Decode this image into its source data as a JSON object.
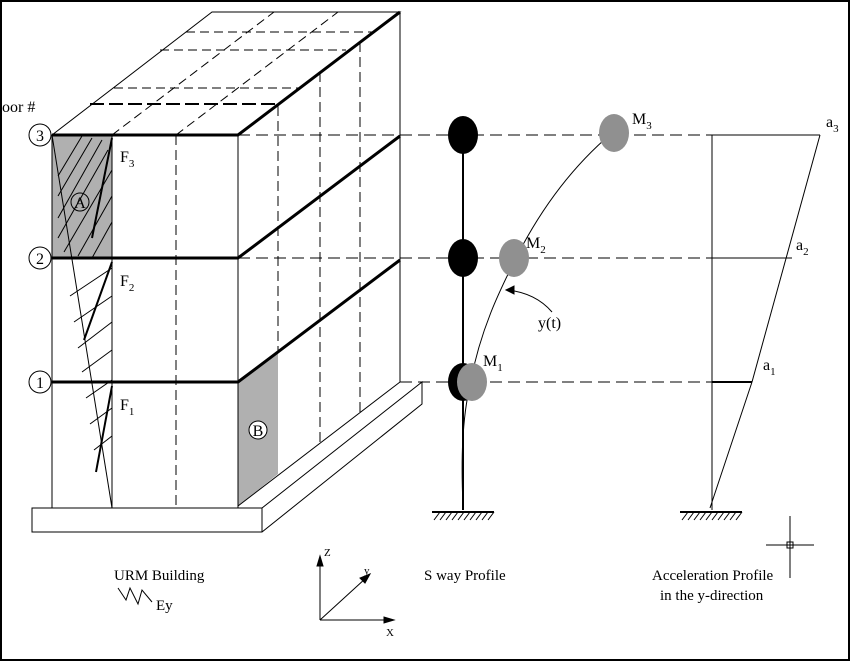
{
  "floor_header": "oor #",
  "floors": [
    {
      "number": "3",
      "force": "F",
      "force_sub": "3",
      "mass": "M",
      "mass_sub": "3",
      "accel": "a",
      "accel_sub": "3"
    },
    {
      "number": "2",
      "force": "F",
      "force_sub": "2",
      "mass": "M",
      "mass_sub": "2",
      "accel": "a",
      "accel_sub": "2"
    },
    {
      "number": "1",
      "force": "F",
      "force_sub": "1",
      "mass": "M",
      "mass_sub": "1",
      "accel": "a",
      "accel_sub": "1"
    }
  ],
  "wall_labels": {
    "a": "A",
    "b": "B"
  },
  "sway_label": "y(t)",
  "captions": {
    "urm": "URM Building",
    "excitation": "Ey",
    "sway": "S way Profile",
    "accel_line1": "Acceleration Profile",
    "accel_line2": "in the y-direction"
  },
  "axes": {
    "z": "Z",
    "y": "y",
    "x": "X"
  },
  "colors": {
    "shade": "#b0b0b0",
    "mass_dark": "#000000",
    "mass_gray": "#909090",
    "line": "#000000"
  }
}
